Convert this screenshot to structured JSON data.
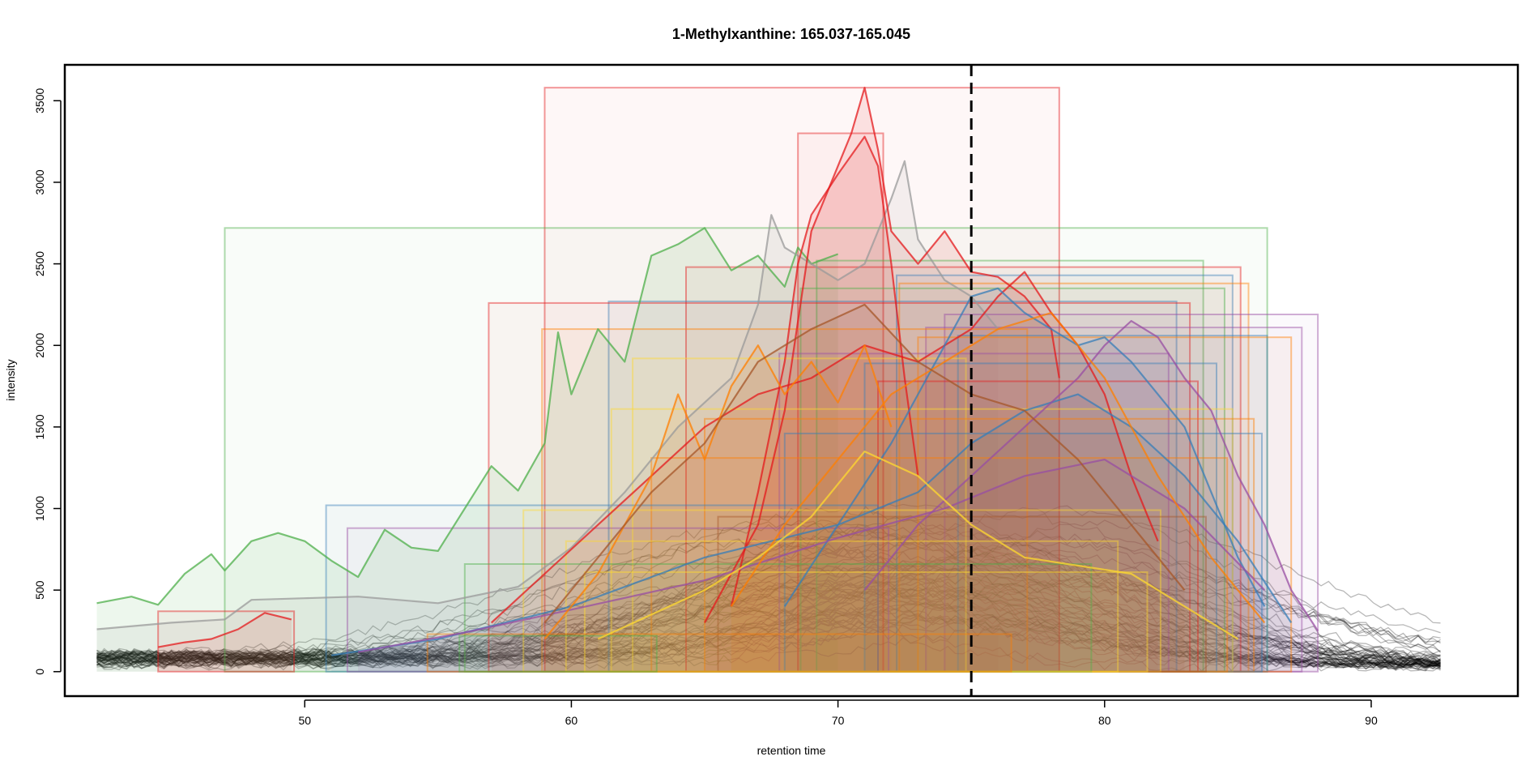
{
  "chart_data": {
    "type": "line",
    "title": "1-Methylxanthine: 165.037-165.045",
    "xlabel": "retention time",
    "ylabel": "intensity",
    "xlim": [
      41.0,
      95.5
    ],
    "ylim": [
      -150,
      3720
    ],
    "x_ticks": [
      50,
      60,
      70,
      80,
      90
    ],
    "x_tick_labels": [
      "50",
      "60",
      "70",
      "80",
      "90"
    ],
    "y_ticks": [
      0,
      500,
      1000,
      1500,
      2000,
      2500,
      3000,
      3500
    ],
    "y_tick_labels": [
      "0",
      "500",
      "1000",
      "1500",
      "2000",
      "2500",
      "3000",
      "3500"
    ],
    "reference_line": {
      "x": 75.0,
      "style": "dashed",
      "color": "#000000"
    },
    "background_traces": {
      "count": 60,
      "x_range": [
        42.2,
        92.7
      ],
      "color": "#000000"
    },
    "series": [
      {
        "color": "#4DAF4A",
        "x": [
          42.2,
          43.5,
          44.5,
          45.5,
          46.5,
          47,
          48,
          49,
          50,
          51,
          52,
          53,
          54,
          55,
          56,
          57,
          58,
          59,
          59.5,
          60,
          61,
          62,
          63,
          64,
          65,
          66,
          67,
          68,
          68.5,
          69,
          70
        ],
        "values": [
          420,
          460,
          410,
          600,
          720,
          620,
          800,
          850,
          800,
          680,
          580,
          870,
          760,
          740,
          1000,
          1260,
          1110,
          1400,
          2080,
          1700,
          2100,
          1900,
          2550,
          2620,
          2720,
          2460,
          2550,
          2360,
          2600,
          2500,
          2560
        ]
      },
      {
        "color": "#999999",
        "x": [
          42.2,
          45,
          47,
          48,
          50,
          52,
          55,
          58,
          60,
          62,
          64,
          66,
          67,
          67.5,
          68,
          69,
          70,
          71,
          72,
          72.5,
          73,
          74,
          75,
          76
        ],
        "values": [
          260,
          300,
          320,
          440,
          450,
          460,
          420,
          520,
          760,
          1100,
          1500,
          1800,
          2250,
          2800,
          2600,
          2500,
          2400,
          2500,
          2900,
          3130,
          2650,
          2400,
          2300,
          2100
        ]
      },
      {
        "color": "#E41A1C",
        "x": [
          65,
          67,
          68,
          69,
          70,
          70.5,
          71,
          71.5,
          72,
          73,
          74,
          75,
          76,
          77,
          78,
          78.3
        ],
        "values": [
          300,
          900,
          1600,
          2700,
          3100,
          3300,
          3580,
          3200,
          2700,
          2500,
          2700,
          2450,
          2420,
          2300,
          2100,
          1800
        ]
      },
      {
        "color": "#E41A1C",
        "x": [
          66,
          67,
          68,
          68.5,
          69,
          70,
          71,
          71.5,
          72,
          72.5,
          73
        ],
        "values": [
          400,
          1100,
          1900,
          2500,
          2800,
          3050,
          3280,
          3100,
          2500,
          1800,
          1200
        ]
      },
      {
        "color": "#E41A1C",
        "x": [
          44.5,
          45.5,
          46.5,
          47.5,
          48.5,
          49.5
        ],
        "values": [
          150,
          180,
          200,
          260,
          360,
          320
        ]
      },
      {
        "color": "#E41A1C",
        "x": [
          57,
          59,
          61,
          63,
          65,
          67,
          69,
          71,
          73,
          75,
          76,
          77,
          78,
          79,
          80,
          81,
          82
        ],
        "values": [
          300,
          600,
          900,
          1200,
          1500,
          1700,
          1800,
          2000,
          1900,
          2100,
          2300,
          2450,
          2200,
          2000,
          1700,
          1200,
          800
        ]
      },
      {
        "color": "#377EB8",
        "x": [
          68,
          70,
          72,
          73,
          74,
          75,
          76,
          77,
          78,
          79,
          80,
          81,
          82,
          83,
          84,
          85,
          86
        ],
        "values": [
          400,
          900,
          1400,
          1700,
          2000,
          2300,
          2350,
          2200,
          2100,
          2000,
          2050,
          1900,
          1700,
          1500,
          1100,
          700,
          400
        ]
      },
      {
        "color": "#377EB8",
        "x": [
          51,
          55,
          60,
          65,
          70,
          73,
          75,
          77,
          79,
          81,
          83,
          85,
          87
        ],
        "values": [
          100,
          200,
          400,
          700,
          900,
          1100,
          1400,
          1600,
          1700,
          1500,
          1200,
          800,
          300
        ]
      },
      {
        "color": "#984EA3",
        "x": [
          71,
          73,
          75,
          77,
          79,
          80,
          81,
          82,
          83,
          84,
          85,
          86,
          87,
          88
        ],
        "values": [
          500,
          900,
          1200,
          1500,
          1800,
          2000,
          2150,
          2050,
          1800,
          1600,
          1200,
          900,
          500,
          250
        ]
      },
      {
        "color": "#984EA3",
        "x": [
          52,
          56,
          60,
          65,
          70,
          74,
          77,
          80,
          83,
          86
        ],
        "values": [
          120,
          240,
          380,
          560,
          820,
          1000,
          1200,
          1300,
          1000,
          500
        ]
      },
      {
        "color": "#FF7F00",
        "x": [
          59,
          61,
          62,
          63,
          64,
          65,
          66,
          67,
          68,
          69,
          70,
          71,
          72
        ],
        "values": [
          200,
          600,
          900,
          1200,
          1700,
          1300,
          1750,
          2000,
          1700,
          1900,
          1650,
          2000,
          1500
        ]
      },
      {
        "color": "#FF7F00",
        "x": [
          66,
          68,
          70,
          72,
          74,
          76,
          78,
          80,
          82,
          84,
          86
        ],
        "values": [
          400,
          900,
          1300,
          1700,
          1900,
          2100,
          2200,
          1800,
          1200,
          700,
          300
        ]
      },
      {
        "color": "#FFD92F",
        "x": [
          61,
          63,
          65,
          67,
          69,
          71,
          73,
          75,
          77,
          79,
          81,
          83,
          85
        ],
        "values": [
          200,
          350,
          500,
          700,
          950,
          1350,
          1200,
          900,
          700,
          650,
          600,
          400,
          200
        ]
      },
      {
        "color": "#A65628",
        "x": [
          59,
          61,
          63,
          65,
          67,
          69,
          71,
          73,
          75,
          77,
          79,
          81,
          83
        ],
        "values": [
          300,
          700,
          1100,
          1400,
          1900,
          2100,
          2250,
          1900,
          1700,
          1600,
          1300,
          900,
          500
        ]
      }
    ],
    "peak_boxes": [
      {
        "color": "#E41A1C",
        "x0": 59.0,
        "x1": 78.3,
        "ymax": 3580
      },
      {
        "color": "#E41A1C",
        "x0": 68.5,
        "x1": 71.7,
        "ymax": 3300
      },
      {
        "color": "#4DAF4A",
        "x0": 47.0,
        "x1": 86.1,
        "ymax": 2720
      },
      {
        "color": "#4DAF4A",
        "x0": 69.2,
        "x1": 83.7,
        "ymax": 2520
      },
      {
        "color": "#E41A1C",
        "x0": 64.3,
        "x1": 85.1,
        "ymax": 2480
      },
      {
        "color": "#377EB8",
        "x0": 72.2,
        "x1": 84.8,
        "ymax": 2430
      },
      {
        "color": "#FF7F00",
        "x0": 72.3,
        "x1": 85.4,
        "ymax": 2380
      },
      {
        "color": "#4DAF4A",
        "x0": 68.6,
        "x1": 84.5,
        "ymax": 2350
      },
      {
        "color": "#377EB8",
        "x0": 61.4,
        "x1": 82.7,
        "ymax": 2270
      },
      {
        "color": "#E41A1C",
        "x0": 56.9,
        "x1": 83.2,
        "ymax": 2260
      },
      {
        "color": "#984EA3",
        "x0": 74.0,
        "x1": 88.0,
        "ymax": 2190
      },
      {
        "color": "#984EA3",
        "x0": 73.3,
        "x1": 87.4,
        "ymax": 2110
      },
      {
        "color": "#FF7F00",
        "x0": 58.9,
        "x1": 77.1,
        "ymax": 2100
      },
      {
        "color": "#377EB8",
        "x0": 74.5,
        "x1": 86.1,
        "ymax": 2060
      },
      {
        "color": "#FF7F00",
        "x0": 73.0,
        "x1": 87.0,
        "ymax": 2050
      },
      {
        "color": "#984EA3",
        "x0": 67.8,
        "x1": 82.4,
        "ymax": 1950
      },
      {
        "color": "#FFD92F",
        "x0": 62.3,
        "x1": 74.8,
        "ymax": 1920
      },
      {
        "color": "#377EB8",
        "x0": 71.0,
        "x1": 84.2,
        "ymax": 1890
      },
      {
        "color": "#E41A1C",
        "x0": 71.5,
        "x1": 83.5,
        "ymax": 1780
      },
      {
        "color": "#FFD92F",
        "x0": 61.5,
        "x1": 84.8,
        "ymax": 1610
      },
      {
        "color": "#FF7F00",
        "x0": 65.0,
        "x1": 85.6,
        "ymax": 1550
      },
      {
        "color": "#377EB8",
        "x0": 68.0,
        "x1": 85.9,
        "ymax": 1460
      },
      {
        "color": "#FF7F00",
        "x0": 63.0,
        "x1": 84.6,
        "ymax": 1310
      },
      {
        "color": "#377EB8",
        "x0": 50.8,
        "x1": 71.5,
        "ymax": 1020
      },
      {
        "color": "#FFD92F",
        "x0": 58.2,
        "x1": 82.1,
        "ymax": 990
      },
      {
        "color": "#A65628",
        "x0": 65.5,
        "x1": 83.8,
        "ymax": 950
      },
      {
        "color": "#984EA3",
        "x0": 51.6,
        "x1": 71.9,
        "ymax": 880
      },
      {
        "color": "#FFD92F",
        "x0": 59.8,
        "x1": 80.5,
        "ymax": 800
      },
      {
        "color": "#4DAF4A",
        "x0": 56.0,
        "x1": 79.5,
        "ymax": 660
      },
      {
        "color": "#FFD92F",
        "x0": 60.5,
        "x1": 81.6,
        "ymax": 610
      },
      {
        "color": "#E41A1C",
        "x0": 44.5,
        "x1": 49.6,
        "ymax": 370
      },
      {
        "color": "#FF7F00",
        "x0": 54.6,
        "x1": 76.5,
        "ymax": 230
      },
      {
        "color": "#4DAF4A",
        "x0": 55.8,
        "x1": 63.2,
        "ymax": 220
      }
    ]
  }
}
